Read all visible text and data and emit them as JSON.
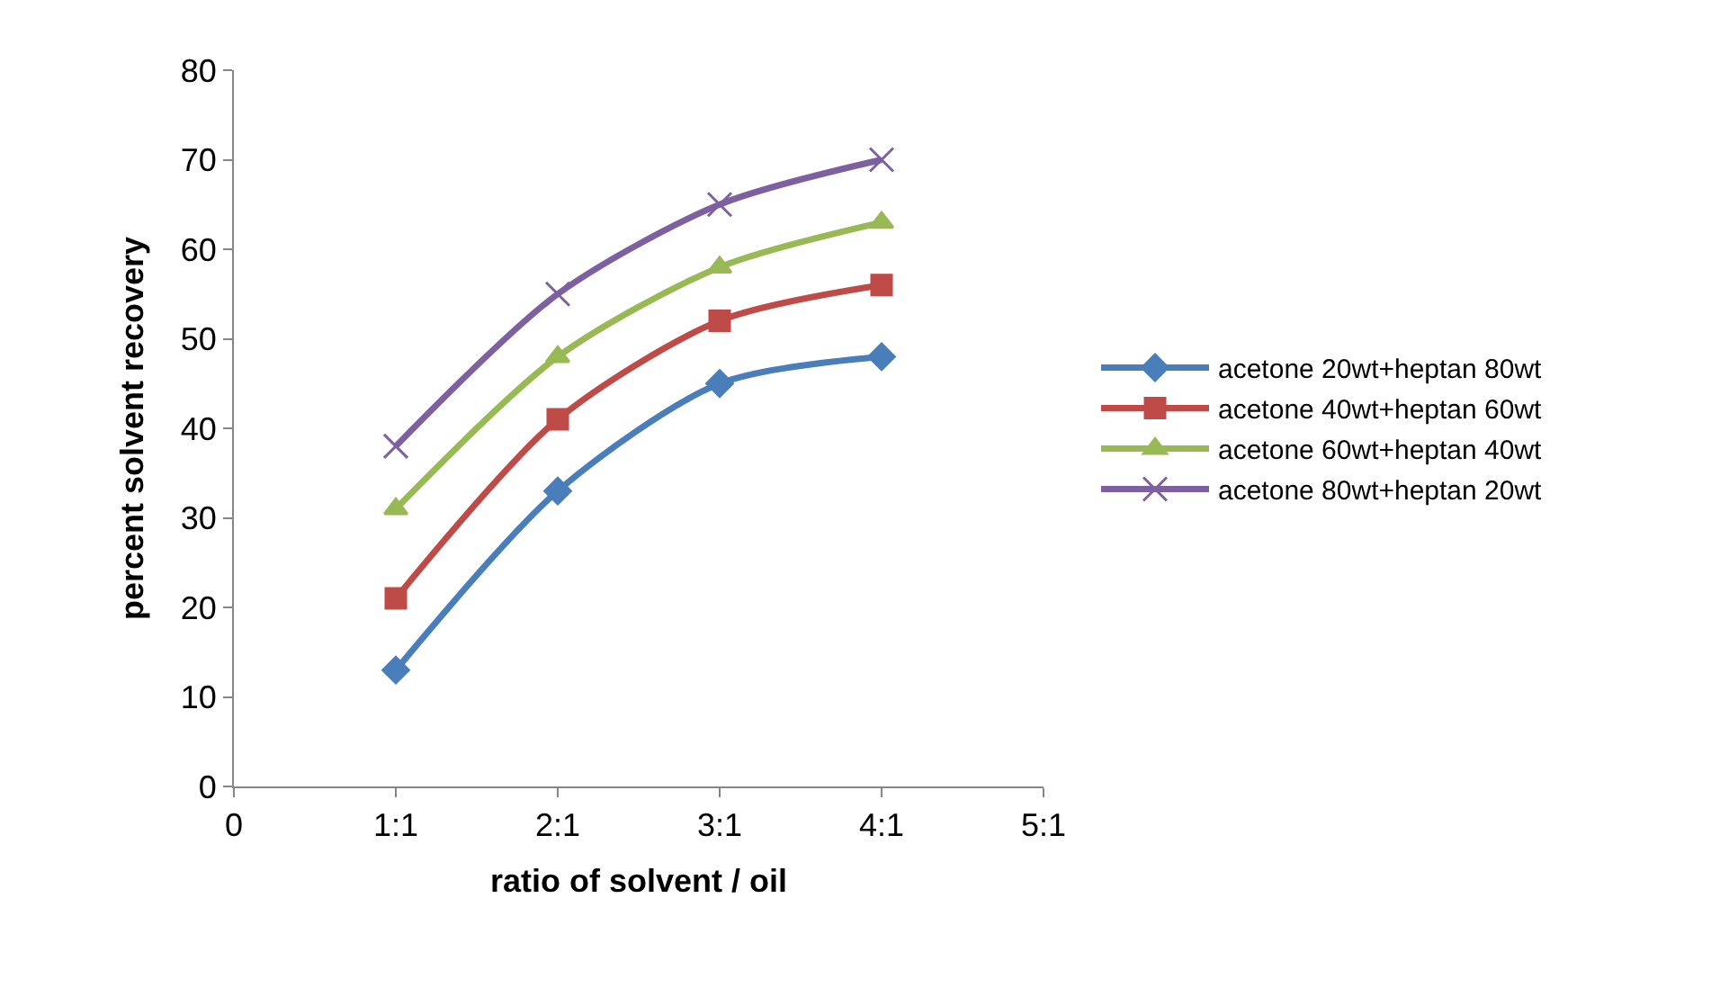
{
  "chart_data": {
    "type": "line",
    "xlabel": "ratio of solvent / oil",
    "ylabel": "percent solvent recovery",
    "categories": [
      "0",
      "1:1",
      "2:1",
      "3:1",
      "4:1",
      "5:1"
    ],
    "ylim": [
      0,
      80
    ],
    "yticks": [
      0,
      10,
      20,
      30,
      40,
      50,
      60,
      70,
      80
    ],
    "legend": "right",
    "series": [
      {
        "name": "acetone 20wt+heptan 80wt",
        "color": "#4a7ebb",
        "marker": "diamond",
        "values": [
          null,
          13,
          33,
          45,
          48,
          null
        ]
      },
      {
        "name": "acetone 40wt+heptan 60wt",
        "color": "#be4b48",
        "marker": "square",
        "values": [
          null,
          21,
          41,
          52,
          56,
          null
        ]
      },
      {
        "name": "acetone 60wt+heptan 40wt",
        "color": "#98b954",
        "marker": "triangle",
        "values": [
          null,
          31,
          48,
          58,
          63,
          null
        ]
      },
      {
        "name": "acetone 80wt+heptan 20wt",
        "color": "#7d60a0",
        "marker": "cross",
        "values": [
          null,
          38,
          55,
          65,
          70,
          null
        ]
      }
    ]
  }
}
